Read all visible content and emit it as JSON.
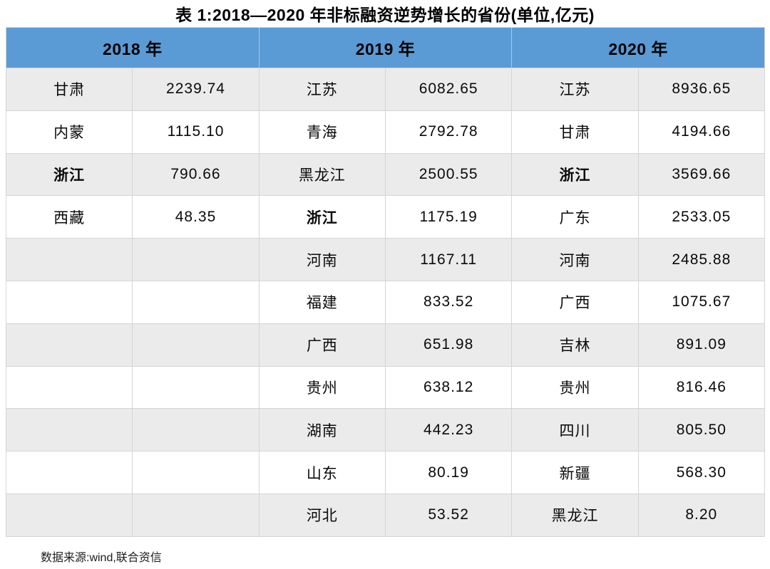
{
  "title": "表 1:2018—2020 年非标融资逆势增长的省份(单位,亿元)",
  "source_note": "数据来源:wind,联合资信",
  "colors": {
    "header_bg": "#5b9bd5",
    "stripe_bg": "#ebebeb",
    "border": "#d5d5d5",
    "text": "#000000"
  },
  "table": {
    "headers": [
      "2018 年",
      "2019 年",
      "2020 年"
    ],
    "column_structure": [
      "province",
      "value",
      "province",
      "value",
      "province",
      "value"
    ],
    "rows": [
      [
        "甘肃",
        "2239.74",
        "江苏",
        "6082.65",
        "江苏",
        "8936.65"
      ],
      [
        "内蒙",
        "1115.10",
        "青海",
        "2792.78",
        "甘肃",
        "4194.66"
      ],
      [
        "浙江",
        "790.66",
        "黑龙江",
        "2500.55",
        "浙江",
        "3569.66"
      ],
      [
        "西藏",
        "48.35",
        "浙江",
        "1175.19",
        "广东",
        "2533.05"
      ],
      [
        "",
        "",
        "河南",
        "1167.11",
        "河南",
        "2485.88"
      ],
      [
        "",
        "",
        "福建",
        "833.52",
        "广西",
        "1075.67"
      ],
      [
        "",
        "",
        "广西",
        "651.98",
        "吉林",
        "891.09"
      ],
      [
        "",
        "",
        "贵州",
        "638.12",
        "贵州",
        "816.46"
      ],
      [
        "",
        "",
        "湖南",
        "442.23",
        "四川",
        "805.50"
      ],
      [
        "",
        "",
        "山东",
        "80.19",
        "新疆",
        "568.30"
      ],
      [
        "",
        "",
        "河北",
        "53.52",
        "黑龙江",
        "8.20"
      ]
    ]
  }
}
